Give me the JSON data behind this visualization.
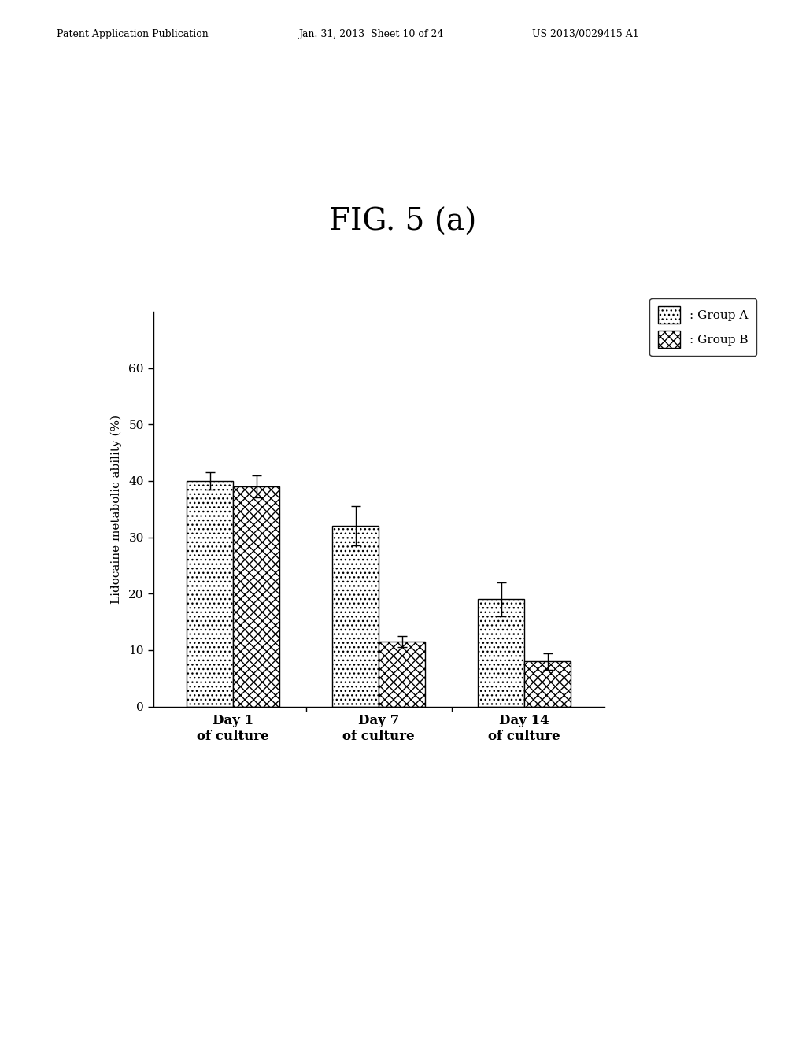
{
  "title": "FIG. 5 (a)",
  "header_left": "Patent Application Publication",
  "header_center": "Jan. 31, 2013  Sheet 10 of 24",
  "header_right": "US 2013/0029415 A1",
  "ylabel": "Lidocaine metabolic ability (%)",
  "categories": [
    "Day 1\nof culture",
    "Day 7\nof culture",
    "Day 14\nof culture"
  ],
  "group_a_values": [
    40.0,
    32.0,
    19.0
  ],
  "group_b_values": [
    39.0,
    11.5,
    8.0
  ],
  "group_a_errors": [
    1.5,
    3.5,
    3.0
  ],
  "group_b_errors": [
    2.0,
    1.0,
    1.5
  ],
  "ylim": [
    0,
    70
  ],
  "yticks": [
    0,
    10,
    20,
    30,
    40,
    50,
    60
  ],
  "legend_labels": [
    ": Group A",
    ": Group B"
  ],
  "background_color": "#ffffff",
  "bar_width": 0.32
}
